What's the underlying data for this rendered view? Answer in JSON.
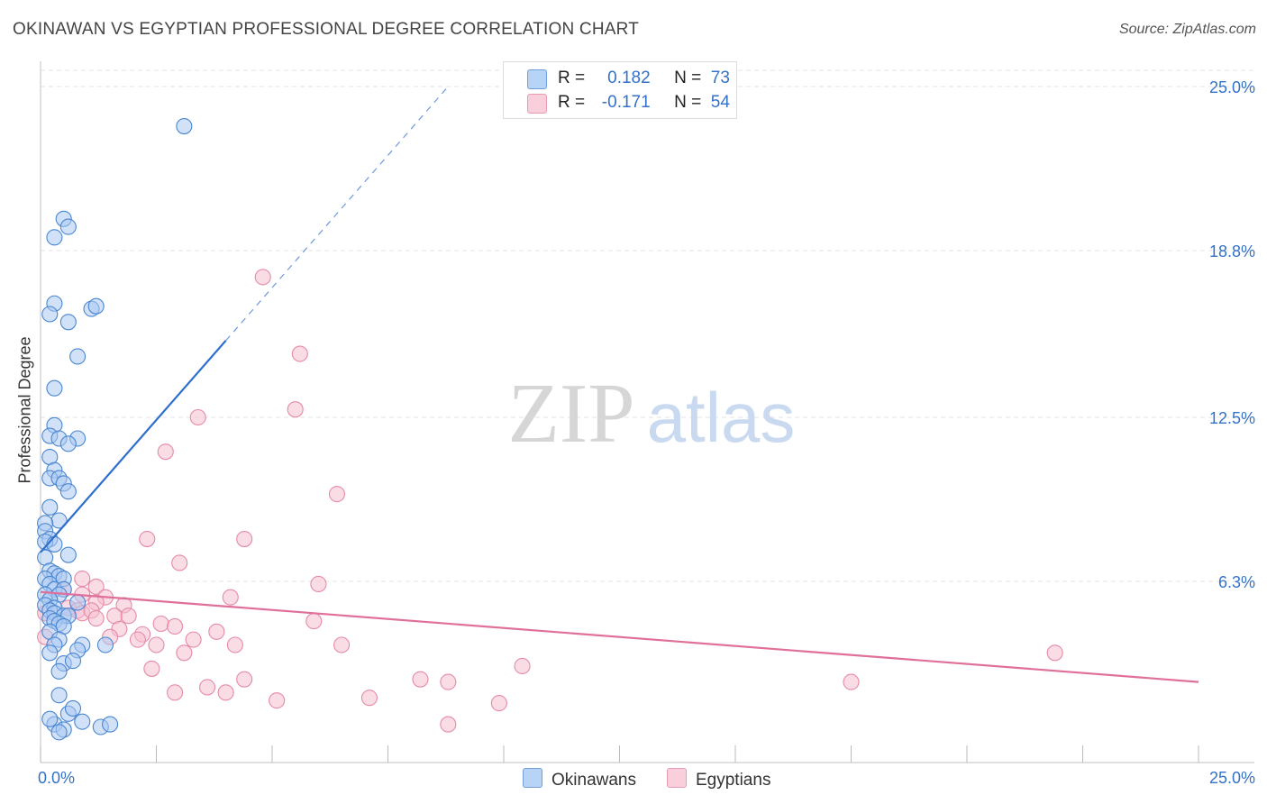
{
  "title": "OKINAWAN VS EGYPTIAN PROFESSIONAL DEGREE CORRELATION CHART",
  "source": "Source: ZipAtlas.com",
  "watermark": {
    "zip": "ZIP",
    "atlas": "atlas"
  },
  "legend": {
    "series1": {
      "r_label": "R =",
      "r_value": "0.182",
      "n_label": "N =",
      "n_value": "73"
    },
    "series2": {
      "r_label": "R =",
      "r_value": "-0.171",
      "n_label": "N =",
      "n_value": "54"
    }
  },
  "bottom_legend": {
    "series1": "Okinawans",
    "series2": "Egyptians"
  },
  "colors": {
    "okinawan_fill": "#a9c9f2",
    "okinawan_stroke": "#4a86d0",
    "okinawan_line": "#2f6fcc",
    "egyptian_fill": "#f6c0d0",
    "egyptian_stroke": "#e58aa8",
    "egyptian_line": "#e0709a",
    "axis_text": "#3472c7",
    "grid": "#e3e3e3"
  },
  "chart_data": {
    "type": "scatter",
    "title": "OKINAWAN VS EGYPTIAN PROFESSIONAL DEGREE CORRELATION CHART",
    "xlabel": "",
    "ylabel": "Professional Degree",
    "xlim": [
      0,
      25
    ],
    "ylim": [
      0,
      25
    ],
    "x_tick_labels": [
      "0.0%",
      "25.0%"
    ],
    "y_ticks": [
      6.3,
      12.5,
      18.8,
      25.0
    ],
    "y_tick_labels": [
      "6.3%",
      "12.5%",
      "18.8%",
      "25.0%"
    ],
    "grid": "horizontal dashed",
    "series": [
      {
        "name": "Okinawans",
        "r": 0.182,
        "n": 73,
        "trend": {
          "x0": 0.0,
          "y0": 7.4,
          "x1": 4.0,
          "y1": 15.4,
          "dash_to_x": 8.8,
          "dash_to_y": 25.0
        },
        "points": [
          [
            3.1,
            23.5
          ],
          [
            0.5,
            20.0
          ],
          [
            0.6,
            19.7
          ],
          [
            0.3,
            19.3
          ],
          [
            0.3,
            16.8
          ],
          [
            1.1,
            16.6
          ],
          [
            1.2,
            16.7
          ],
          [
            0.2,
            16.4
          ],
          [
            0.6,
            16.1
          ],
          [
            0.8,
            14.8
          ],
          [
            0.3,
            13.6
          ],
          [
            0.3,
            12.2
          ],
          [
            0.8,
            11.7
          ],
          [
            0.2,
            11.8
          ],
          [
            0.4,
            11.7
          ],
          [
            0.6,
            11.5
          ],
          [
            0.2,
            11.0
          ],
          [
            0.3,
            10.5
          ],
          [
            0.2,
            10.2
          ],
          [
            0.4,
            10.2
          ],
          [
            0.5,
            10.0
          ],
          [
            0.6,
            9.7
          ],
          [
            0.2,
            9.1
          ],
          [
            0.4,
            8.6
          ],
          [
            0.1,
            8.5
          ],
          [
            0.1,
            8.2
          ],
          [
            0.2,
            7.9
          ],
          [
            0.1,
            7.8
          ],
          [
            0.3,
            7.7
          ],
          [
            0.6,
            7.3
          ],
          [
            0.1,
            7.2
          ],
          [
            0.2,
            6.7
          ],
          [
            0.3,
            6.6
          ],
          [
            0.4,
            6.5
          ],
          [
            0.5,
            6.4
          ],
          [
            0.1,
            6.4
          ],
          [
            0.2,
            6.2
          ],
          [
            0.3,
            6.0
          ],
          [
            0.5,
            6.0
          ],
          [
            0.1,
            5.8
          ],
          [
            0.4,
            5.8
          ],
          [
            0.2,
            5.6
          ],
          [
            0.8,
            5.5
          ],
          [
            0.1,
            5.4
          ],
          [
            0.3,
            5.3
          ],
          [
            0.2,
            5.2
          ],
          [
            0.3,
            5.1
          ],
          [
            0.5,
            5.0
          ],
          [
            0.6,
            5.0
          ],
          [
            0.2,
            4.9
          ],
          [
            0.3,
            4.8
          ],
          [
            0.4,
            4.7
          ],
          [
            0.5,
            4.6
          ],
          [
            0.2,
            4.4
          ],
          [
            0.4,
            4.1
          ],
          [
            0.3,
            3.9
          ],
          [
            0.2,
            3.6
          ],
          [
            0.5,
            3.2
          ],
          [
            0.9,
            3.9
          ],
          [
            0.8,
            3.7
          ],
          [
            1.4,
            3.9
          ],
          [
            0.7,
            3.3
          ],
          [
            0.4,
            2.9
          ],
          [
            0.4,
            2.0
          ],
          [
            0.3,
            0.9
          ],
          [
            0.5,
            0.7
          ],
          [
            0.9,
            1.0
          ],
          [
            1.3,
            0.8
          ],
          [
            0.6,
            1.3
          ],
          [
            0.4,
            0.6
          ],
          [
            0.2,
            1.1
          ],
          [
            1.5,
            0.9
          ],
          [
            0.7,
            1.5
          ]
        ]
      },
      {
        "name": "Egyptians",
        "r": -0.171,
        "n": 54,
        "trend": {
          "x0": 0.0,
          "y0": 5.9,
          "x1": 25.0,
          "y1": 2.5
        },
        "points": [
          [
            4.8,
            17.8
          ],
          [
            5.6,
            14.9
          ],
          [
            3.4,
            12.5
          ],
          [
            5.5,
            12.8
          ],
          [
            2.7,
            11.2
          ],
          [
            6.4,
            9.6
          ],
          [
            2.3,
            7.9
          ],
          [
            4.4,
            7.9
          ],
          [
            3.0,
            7.0
          ],
          [
            6.0,
            6.2
          ],
          [
            0.9,
            6.4
          ],
          [
            1.2,
            6.1
          ],
          [
            0.5,
            6.0
          ],
          [
            0.9,
            5.8
          ],
          [
            1.4,
            5.7
          ],
          [
            4.1,
            5.7
          ],
          [
            1.2,
            5.5
          ],
          [
            1.8,
            5.4
          ],
          [
            0.6,
            5.3
          ],
          [
            0.8,
            5.2
          ],
          [
            0.9,
            5.1
          ],
          [
            1.1,
            5.2
          ],
          [
            1.6,
            5.0
          ],
          [
            1.9,
            5.0
          ],
          [
            1.2,
            4.9
          ],
          [
            5.9,
            4.8
          ],
          [
            2.6,
            4.7
          ],
          [
            2.9,
            4.6
          ],
          [
            1.7,
            4.5
          ],
          [
            3.8,
            4.4
          ],
          [
            1.5,
            4.2
          ],
          [
            2.2,
            4.3
          ],
          [
            2.1,
            4.1
          ],
          [
            3.3,
            4.1
          ],
          [
            2.5,
            3.9
          ],
          [
            4.2,
            3.9
          ],
          [
            6.5,
            3.9
          ],
          [
            0.1,
            4.2
          ],
          [
            3.1,
            3.6
          ],
          [
            21.9,
            3.6
          ],
          [
            10.4,
            3.1
          ],
          [
            2.4,
            3.0
          ],
          [
            4.4,
            2.6
          ],
          [
            8.2,
            2.6
          ],
          [
            8.8,
            2.5
          ],
          [
            17.5,
            2.5
          ],
          [
            3.6,
            2.3
          ],
          [
            2.9,
            2.1
          ],
          [
            4.0,
            2.1
          ],
          [
            7.1,
            1.9
          ],
          [
            5.1,
            1.8
          ],
          [
            9.9,
            1.7
          ],
          [
            8.8,
            0.9
          ],
          [
            0.1,
            5.1
          ]
        ]
      }
    ]
  }
}
